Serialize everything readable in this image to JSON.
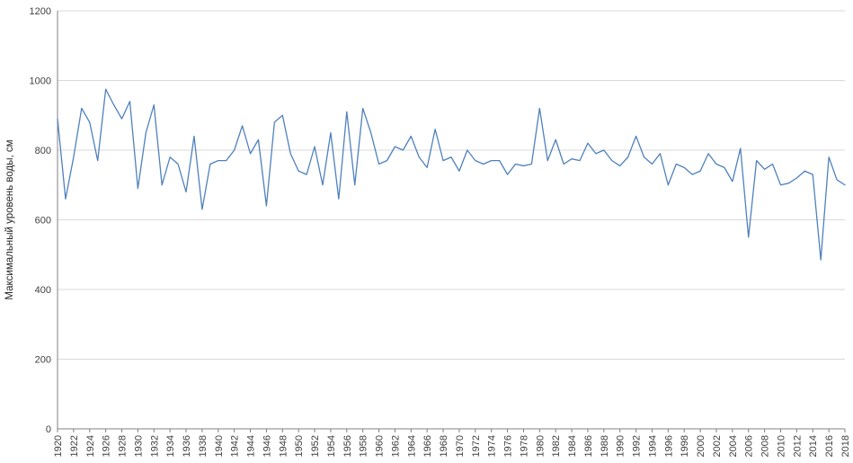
{
  "page": {
    "background_color": "#ffffff"
  },
  "chart_data": {
    "type": "line",
    "title": "",
    "xlabel": "",
    "ylabel": "Максимальный уровень воды, см",
    "ylim": [
      0,
      1200
    ],
    "ytick_step": 200,
    "xtick_step": 2,
    "grid": true,
    "legend": "none",
    "line_color": "#4F81BD",
    "grid_color": "#D9D9D9",
    "axis_color": "#808080",
    "tick_label_color": "#404040",
    "axis_title_color": "#262626",
    "years": [
      1920,
      1921,
      1922,
      1923,
      1924,
      1925,
      1926,
      1927,
      1928,
      1929,
      1930,
      1931,
      1932,
      1933,
      1934,
      1935,
      1936,
      1937,
      1938,
      1939,
      1940,
      1941,
      1942,
      1943,
      1944,
      1945,
      1946,
      1947,
      1948,
      1949,
      1950,
      1951,
      1952,
      1953,
      1954,
      1955,
      1956,
      1957,
      1958,
      1959,
      1960,
      1961,
      1962,
      1963,
      1964,
      1965,
      1966,
      1967,
      1968,
      1969,
      1970,
      1971,
      1972,
      1973,
      1974,
      1975,
      1976,
      1977,
      1978,
      1979,
      1980,
      1981,
      1982,
      1983,
      1984,
      1985,
      1986,
      1987,
      1988,
      1989,
      1990,
      1991,
      1992,
      1993,
      1994,
      1995,
      1996,
      1997,
      1998,
      1999,
      2000,
      2001,
      2002,
      2003,
      2004,
      2005,
      2006,
      2007,
      2008,
      2009,
      2010,
      2011,
      2012,
      2013,
      2014,
      2015,
      2016,
      2017,
      2018
    ],
    "values": [
      890,
      660,
      780,
      920,
      880,
      770,
      975,
      930,
      890,
      940,
      690,
      850,
      930,
      700,
      780,
      760,
      680,
      840,
      630,
      760,
      770,
      770,
      800,
      870,
      790,
      830,
      640,
      880,
      900,
      790,
      740,
      730,
      810,
      700,
      850,
      660,
      910,
      700,
      920,
      850,
      760,
      770,
      810,
      800,
      840,
      780,
      750,
      860,
      770,
      780,
      740,
      800,
      770,
      760,
      770,
      770,
      730,
      760,
      755,
      760,
      920,
      770,
      830,
      760,
      775,
      770,
      820,
      790,
      800,
      770,
      755,
      780,
      840,
      780,
      760,
      790,
      700,
      760,
      750,
      730,
      740,
      790,
      760,
      750,
      710,
      805,
      550,
      770,
      745,
      760,
      700,
      705,
      720,
      740,
      730,
      485,
      780,
      715,
      700
    ]
  }
}
